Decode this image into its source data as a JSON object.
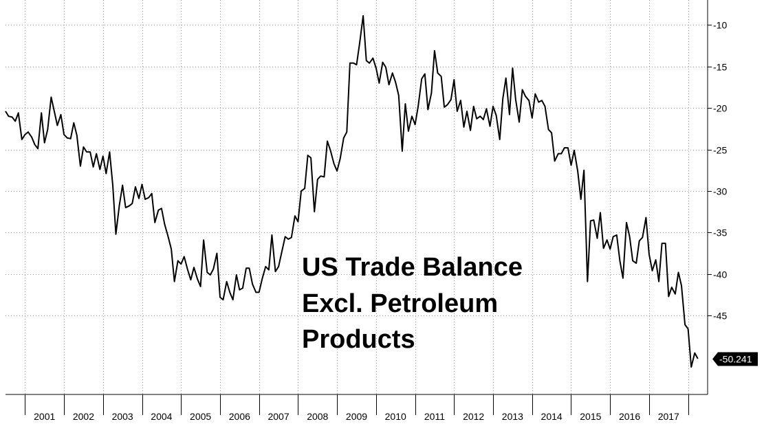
{
  "chart_data": {
    "type": "line",
    "title_lines": [
      "US Trade Balance",
      "Excl. Petroleum",
      "Products"
    ],
    "xlabel": "",
    "ylabel": "",
    "x_range": [
      2000.5,
      2018.5
    ],
    "ylim": [
      -54.5,
      -7
    ],
    "y_ticks": [
      -10,
      -15,
      -20,
      -25,
      -30,
      -35,
      -40,
      -45
    ],
    "x_tick_labels": [
      "2001",
      "2002",
      "2003",
      "2004",
      "2005",
      "2006",
      "2007",
      "2008",
      "2009",
      "2010",
      "2011",
      "2012",
      "2013",
      "2014",
      "2015",
      "2016",
      "2017"
    ],
    "grid": true,
    "last_value": -50.241,
    "last_value_label": "-50.241",
    "series": [
      {
        "values": [
          [
            2000.5,
            -20.4
          ],
          [
            2000.58,
            -21.0
          ],
          [
            2000.67,
            -21.1
          ],
          [
            2000.75,
            -21.6
          ],
          [
            2000.83,
            -20.6
          ],
          [
            2000.92,
            -23.8
          ],
          [
            2001.0,
            -23.2
          ],
          [
            2001.08,
            -22.9
          ],
          [
            2001.17,
            -23.5
          ],
          [
            2001.25,
            -24.4
          ],
          [
            2001.33,
            -24.9
          ],
          [
            2001.42,
            -20.6
          ],
          [
            2001.5,
            -24.2
          ],
          [
            2001.58,
            -22.6
          ],
          [
            2001.67,
            -18.7
          ],
          [
            2001.75,
            -20.4
          ],
          [
            2001.83,
            -22.1
          ],
          [
            2001.92,
            -20.8
          ],
          [
            2002.0,
            -23.2
          ],
          [
            2002.08,
            -23.6
          ],
          [
            2002.17,
            -23.7
          ],
          [
            2002.25,
            -21.8
          ],
          [
            2002.33,
            -23.3
          ],
          [
            2002.42,
            -27.0
          ],
          [
            2002.5,
            -24.7
          ],
          [
            2002.58,
            -25.3
          ],
          [
            2002.67,
            -25.3
          ],
          [
            2002.75,
            -27.1
          ],
          [
            2002.83,
            -25.5
          ],
          [
            2002.92,
            -27.4
          ],
          [
            2003.0,
            -25.8
          ],
          [
            2003.08,
            -27.9
          ],
          [
            2003.17,
            -25.3
          ],
          [
            2003.25,
            -29.3
          ],
          [
            2003.33,
            -35.2
          ],
          [
            2003.42,
            -31.7
          ],
          [
            2003.5,
            -29.3
          ],
          [
            2003.58,
            -32.0
          ],
          [
            2003.67,
            -31.8
          ],
          [
            2003.75,
            -31.5
          ],
          [
            2003.83,
            -29.5
          ],
          [
            2003.92,
            -30.9
          ],
          [
            2004.0,
            -29.2
          ],
          [
            2004.08,
            -31.0
          ],
          [
            2004.17,
            -30.8
          ],
          [
            2004.25,
            -30.3
          ],
          [
            2004.33,
            -33.8
          ],
          [
            2004.42,
            -32.3
          ],
          [
            2004.5,
            -32.1
          ],
          [
            2004.58,
            -34.0
          ],
          [
            2004.67,
            -35.5
          ],
          [
            2004.75,
            -37.0
          ],
          [
            2004.83,
            -40.9
          ],
          [
            2004.92,
            -38.4
          ],
          [
            2005.0,
            -38.8
          ],
          [
            2005.08,
            -37.9
          ],
          [
            2005.17,
            -39.5
          ],
          [
            2005.25,
            -40.7
          ],
          [
            2005.33,
            -39.2
          ],
          [
            2005.42,
            -40.6
          ],
          [
            2005.5,
            -41.5
          ],
          [
            2005.58,
            -35.9
          ],
          [
            2005.67,
            -39.8
          ],
          [
            2005.75,
            -40.1
          ],
          [
            2005.83,
            -39.4
          ],
          [
            2005.92,
            -37.5
          ],
          [
            2006.0,
            -42.8
          ],
          [
            2006.08,
            -43.1
          ],
          [
            2006.17,
            -40.9
          ],
          [
            2006.25,
            -42.2
          ],
          [
            2006.33,
            -43.1
          ],
          [
            2006.42,
            -40.1
          ],
          [
            2006.5,
            -41.9
          ],
          [
            2006.58,
            -41.7
          ],
          [
            2006.67,
            -39.3
          ],
          [
            2006.75,
            -39.3
          ],
          [
            2006.83,
            -41.2
          ],
          [
            2006.92,
            -42.2
          ],
          [
            2007.0,
            -42.2
          ],
          [
            2007.08,
            -40.6
          ],
          [
            2007.17,
            -39.1
          ],
          [
            2007.25,
            -39.5
          ],
          [
            2007.33,
            -35.3
          ],
          [
            2007.42,
            -39.7
          ],
          [
            2007.5,
            -39.1
          ],
          [
            2007.58,
            -37.4
          ],
          [
            2007.67,
            -35.5
          ],
          [
            2007.75,
            -35.8
          ],
          [
            2007.83,
            -35.6
          ],
          [
            2007.92,
            -33.0
          ],
          [
            2008.0,
            -33.7
          ],
          [
            2008.08,
            -30.0
          ],
          [
            2008.17,
            -29.7
          ],
          [
            2008.25,
            -25.7
          ],
          [
            2008.33,
            -26.0
          ],
          [
            2008.42,
            -32.5
          ],
          [
            2008.5,
            -28.6
          ],
          [
            2008.58,
            -28.2
          ],
          [
            2008.67,
            -28.3
          ],
          [
            2008.75,
            -24.0
          ],
          [
            2008.83,
            -25.1
          ],
          [
            2008.92,
            -26.7
          ],
          [
            2009.0,
            -27.6
          ],
          [
            2009.08,
            -26.1
          ],
          [
            2009.17,
            -23.6
          ],
          [
            2009.25,
            -22.9
          ],
          [
            2009.33,
            -14.6
          ],
          [
            2009.42,
            -14.6
          ],
          [
            2009.5,
            -14.8
          ],
          [
            2009.58,
            -12.2
          ],
          [
            2009.67,
            -8.9
          ],
          [
            2009.75,
            -14.3
          ],
          [
            2009.83,
            -14.6
          ],
          [
            2009.92,
            -14.0
          ],
          [
            2010.0,
            -15.2
          ],
          [
            2010.08,
            -17.0
          ],
          [
            2010.17,
            -14.5
          ],
          [
            2010.25,
            -15.1
          ],
          [
            2010.33,
            -17.2
          ],
          [
            2010.42,
            -15.8
          ],
          [
            2010.5,
            -16.9
          ],
          [
            2010.58,
            -18.5
          ],
          [
            2010.67,
            -25.2
          ],
          [
            2010.75,
            -19.5
          ],
          [
            2010.83,
            -22.8
          ],
          [
            2010.92,
            -21.0
          ],
          [
            2011.0,
            -22.0
          ],
          [
            2011.08,
            -19.8
          ],
          [
            2011.17,
            -16.5
          ],
          [
            2011.25,
            -15.9
          ],
          [
            2011.33,
            -20.2
          ],
          [
            2011.42,
            -18.2
          ],
          [
            2011.5,
            -13.1
          ],
          [
            2011.58,
            -15.8
          ],
          [
            2011.67,
            -16.2
          ],
          [
            2011.75,
            -19.9
          ],
          [
            2011.83,
            -19.6
          ],
          [
            2011.92,
            -19.0
          ],
          [
            2012.0,
            -16.6
          ],
          [
            2012.08,
            -20.4
          ],
          [
            2012.17,
            -19.1
          ],
          [
            2012.25,
            -22.3
          ],
          [
            2012.33,
            -20.4
          ],
          [
            2012.42,
            -22.7
          ],
          [
            2012.5,
            -19.8
          ],
          [
            2012.58,
            -21.3
          ],
          [
            2012.67,
            -21.0
          ],
          [
            2012.75,
            -21.4
          ],
          [
            2012.83,
            -20.1
          ],
          [
            2012.92,
            -22.2
          ],
          [
            2013.0,
            -19.8
          ],
          [
            2013.08,
            -20.9
          ],
          [
            2013.17,
            -23.8
          ],
          [
            2013.25,
            -18.9
          ],
          [
            2013.33,
            -16.4
          ],
          [
            2013.42,
            -20.8
          ],
          [
            2013.5,
            -15.2
          ],
          [
            2013.58,
            -19.0
          ],
          [
            2013.67,
            -21.7
          ],
          [
            2013.75,
            -17.8
          ],
          [
            2013.83,
            -18.6
          ],
          [
            2013.92,
            -19.1
          ],
          [
            2014.0,
            -21.2
          ],
          [
            2014.08,
            -18.3
          ],
          [
            2014.17,
            -19.3
          ],
          [
            2014.25,
            -19.1
          ],
          [
            2014.33,
            -19.8
          ],
          [
            2014.42,
            -22.6
          ],
          [
            2014.5,
            -23.0
          ],
          [
            2014.58,
            -26.4
          ],
          [
            2014.67,
            -25.5
          ],
          [
            2014.75,
            -25.5
          ],
          [
            2014.83,
            -24.8
          ],
          [
            2014.92,
            -24.8
          ],
          [
            2015.0,
            -26.9
          ],
          [
            2015.08,
            -25.1
          ],
          [
            2015.17,
            -27.6
          ],
          [
            2015.25,
            -31.0
          ],
          [
            2015.33,
            -27.5
          ],
          [
            2015.42,
            -40.9
          ],
          [
            2015.5,
            -33.6
          ],
          [
            2015.58,
            -33.5
          ],
          [
            2015.67,
            -35.7
          ],
          [
            2015.75,
            -32.6
          ],
          [
            2015.83,
            -36.9
          ],
          [
            2015.92,
            -35.9
          ],
          [
            2016.0,
            -37.0
          ],
          [
            2016.08,
            -35.5
          ],
          [
            2016.17,
            -35.3
          ],
          [
            2016.25,
            -38.4
          ],
          [
            2016.33,
            -40.5
          ],
          [
            2016.42,
            -33.8
          ],
          [
            2016.5,
            -35.5
          ],
          [
            2016.58,
            -38.4
          ],
          [
            2016.67,
            -38.7
          ],
          [
            2016.75,
            -36.0
          ],
          [
            2016.83,
            -35.6
          ],
          [
            2016.92,
            -33.2
          ],
          [
            2017.0,
            -37.6
          ],
          [
            2017.08,
            -39.6
          ],
          [
            2017.17,
            -38.3
          ],
          [
            2017.25,
            -40.9
          ],
          [
            2017.33,
            -36.3
          ],
          [
            2017.42,
            -36.3
          ],
          [
            2017.5,
            -42.7
          ],
          [
            2017.58,
            -41.6
          ],
          [
            2017.67,
            -42.4
          ],
          [
            2017.75,
            -39.8
          ],
          [
            2017.83,
            -41.4
          ],
          [
            2017.92,
            -46.1
          ],
          [
            2018.0,
            -46.6
          ],
          [
            2018.08,
            -51.2
          ],
          [
            2018.17,
            -49.5
          ],
          [
            2018.25,
            -50.2
          ]
        ]
      }
    ]
  }
}
